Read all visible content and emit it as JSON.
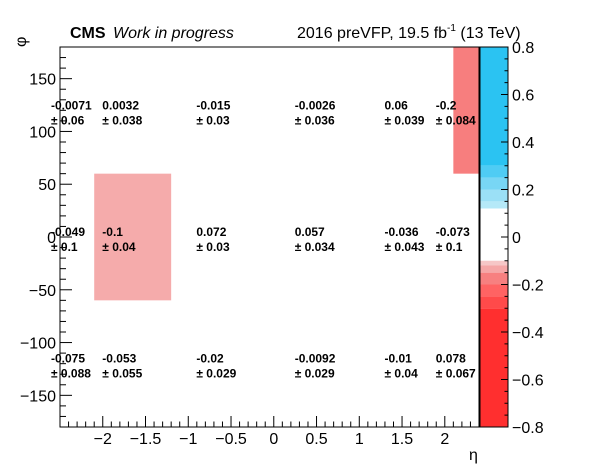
{
  "header": {
    "experiment": "CMS",
    "status": "Work in progress",
    "lumi_prefix": "2016 preVFP, 19.5 fb",
    "lumi_exp": "-1",
    "lumi_suffix": " (13 TeV)"
  },
  "chart_data": {
    "type": "heatmap",
    "xlabel": "η",
    "ylabel": "φ",
    "xlim": [
      -2.5,
      2.4
    ],
    "ylim": [
      -180,
      180
    ],
    "zlim": [
      -0.8,
      0.8
    ],
    "x_ticks": [
      -2,
      -1.5,
      -1,
      -0.5,
      0,
      0.5,
      1,
      1.5,
      2
    ],
    "x_tick_labels": [
      "−2",
      "−1.5",
      "−1",
      "−0.5",
      "0",
      "0.5",
      "1",
      "1.5",
      "2"
    ],
    "y_ticks": [
      -150,
      -100,
      -50,
      0,
      50,
      100,
      150
    ],
    "y_tick_labels": [
      "−150",
      "−100",
      "−50",
      "0",
      "50",
      "100",
      "150"
    ],
    "z_ticks": [
      -0.8,
      -0.6,
      -0.4,
      -0.2,
      0,
      0.2,
      0.4,
      0.6,
      0.8
    ],
    "z_tick_labels": [
      "−0.8",
      "−0.6",
      "−0.4",
      "−0.2",
      "0",
      "0.2",
      "0.4",
      "0.6",
      "0.8"
    ],
    "filled_cells": [
      {
        "x0": -2.1,
        "x1": -1.2,
        "y0": -60,
        "y1": 60,
        "value": -0.1
      },
      {
        "x0": 2.1,
        "x1": 2.4,
        "y0": 60,
        "y1": 180,
        "value": -0.2
      }
    ],
    "colors": {
      "palette_red": [
        "#ff2f2f",
        "#ff4a4a",
        "#ff6363",
        "#f78080",
        "#f5a7a7",
        "#f6c7c7"
      ],
      "palette_blue": [
        "#b5e9f8",
        "#9be0f6",
        "#78d6f5",
        "#4fccf4",
        "#2bc3f2"
      ],
      "cell_minus_0_1": "#f5abab",
      "cell_minus_0_2": "#f77e7e"
    },
    "labels": [
      {
        "x": -2.5,
        "y": 120,
        "value": "-0.0071",
        "err": "± 0.06"
      },
      {
        "x": -1.9,
        "y": 120,
        "value": "0.0032",
        "err": "± 0.038"
      },
      {
        "x": -0.8,
        "y": 120,
        "value": "-0.015",
        "err": "± 0.03"
      },
      {
        "x": 0.35,
        "y": 120,
        "value": "-0.0026",
        "err": "± 0.036"
      },
      {
        "x": 1.4,
        "y": 120,
        "value": "0.06",
        "err": "± 0.039"
      },
      {
        "x": 2.0,
        "y": 120,
        "value": "-0.2",
        "err": "± 0.084"
      },
      {
        "x": -2.5,
        "y": 0,
        "value": "-0.049",
        "err": "± 0.1"
      },
      {
        "x": -1.9,
        "y": 0,
        "value": "-0.1",
        "err": "± 0.04"
      },
      {
        "x": -0.8,
        "y": 0,
        "value": "0.072",
        "err": "± 0.03"
      },
      {
        "x": 0.35,
        "y": 0,
        "value": "0.057",
        "err": "± 0.034"
      },
      {
        "x": 1.4,
        "y": 0,
        "value": "-0.036",
        "err": "± 0.043"
      },
      {
        "x": 2.0,
        "y": 0,
        "value": "-0.073",
        "err": "± 0.1"
      },
      {
        "x": -2.5,
        "y": -120,
        "value": "-0.075",
        "err": "± 0.088"
      },
      {
        "x": -1.9,
        "y": -120,
        "value": "-0.053",
        "err": "± 0.055"
      },
      {
        "x": -0.8,
        "y": -120,
        "value": "-0.02",
        "err": "± 0.029"
      },
      {
        "x": 0.35,
        "y": -120,
        "value": "-0.0092",
        "err": "± 0.029"
      },
      {
        "x": 1.4,
        "y": -120,
        "value": "-0.01",
        "err": "± 0.04"
      },
      {
        "x": 2.0,
        "y": -120,
        "value": "0.078",
        "err": "± 0.067"
      }
    ]
  }
}
